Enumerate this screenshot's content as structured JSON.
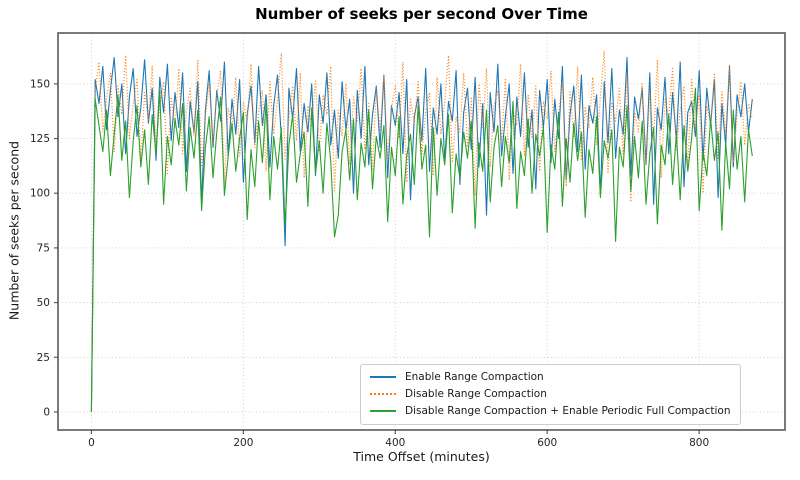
{
  "figure": {
    "title": "Number of seeks per second Over Time",
    "xlabel": "Time Offset (minutes)",
    "ylabel": "Number of seeks per second"
  },
  "colors": {
    "spine": "#595959",
    "grid": "#c9c9c9",
    "tick_text": "#262626",
    "legend_border": "#cccccc",
    "series_blue": "#1f77b4",
    "series_orange": "#ff7f0e",
    "series_green": "#2ca02c"
  },
  "chart_data": {
    "type": "line",
    "title": "Number of seeks per second Over Time",
    "xlabel": "Time Offset (minutes)",
    "ylabel": "Number of seeks per second",
    "grid": true,
    "grid_style": "dotted",
    "legend_position": "lower center",
    "x_start": 0,
    "x_step": 5,
    "x_end": 870,
    "x_ticks": [
      0,
      200,
      400,
      600,
      800
    ],
    "y_ticks": [
      0,
      25,
      50,
      75,
      100,
      125,
      150
    ],
    "xlim": [
      -44,
      913
    ],
    "ylim": [
      -8.25,
      173.25
    ],
    "series": [
      {
        "name": "Enable Range Compaction",
        "color": "#1f77b4",
        "linestyle": "solid",
        "values": [
          0,
          152,
          141,
          158,
          129,
          147,
          162,
          135,
          150,
          118,
          144,
          157,
          126,
          139,
          161,
          132,
          148,
          115,
          153,
          137,
          159,
          124,
          146,
          130,
          155,
          110,
          142,
          128,
          151,
          96,
          138,
          156,
          121,
          147,
          133,
          160,
          117,
          143,
          127,
          152,
          105,
          136,
          149,
          123,
          158,
          131,
          145,
          112,
          140,
          154,
          126,
          76,
          148,
          134,
          157,
          119,
          141,
          128,
          150,
          108,
          145,
          132,
          155,
          122,
          138,
          116,
          151,
          129,
          143,
          100,
          147,
          125,
          158,
          113,
          136,
          149,
          121,
          154,
          107,
          140,
          131,
          146,
          118,
          152,
          97,
          135,
          144,
          124,
          157,
          110,
          139,
          127,
          150,
          115,
          142,
          133,
          156,
          104,
          137,
          148,
          120,
          153,
          112,
          141,
          90,
          146,
          128,
          159,
          117,
          135,
          150,
          109,
          144,
          126,
          155,
          121,
          138,
          102,
          147,
          130,
          152,
          114,
          143,
          125,
          158,
          106,
          136,
          149,
          119,
          154,
          111,
          140,
          132,
          145,
          99,
          151,
          123,
          157,
          116,
          138,
          127,
          162,
          108,
          144,
          134,
          148,
          113,
          155,
          95,
          139,
          129,
          153,
          118,
          146,
          124,
          160,
          103,
          137,
          142,
          126,
          156,
          115,
          148,
          131,
          152,
          98,
          141,
          122,
          158,
          112,
          145,
          135,
          150,
          128,
          143
        ]
      },
      {
        "name": "Disable Range Compaction",
        "color": "#ff7f0e",
        "linestyle": "dotted",
        "values": [
          0,
          147,
          160,
          128,
          143,
          155,
          119,
          149,
          136,
          163,
          125,
          141,
          152,
          114,
          146,
          133,
          158,
          122,
          140,
          151,
          109,
          144,
          130,
          157,
          118,
          138,
          148,
          126,
          161,
          112,
          135,
          150,
          123,
          145,
          156,
          104,
          139,
          129,
          153,
          117,
          142,
          132,
          159,
          121,
          137,
          147,
          110,
          151,
          127,
          143,
          164,
          115,
          134,
          149,
          124,
          155,
          107,
          140,
          131,
          152,
          119,
          145,
          136,
          158,
          101,
          138,
          126,
          150,
          113,
          144,
          133,
          157,
          120,
          141,
          111,
          148,
          129,
          154,
          116,
          139,
          149,
          125,
          160,
          105,
          143,
          132,
          151,
          118,
          137,
          146,
          108,
          153,
          127,
          142,
          163,
          114,
          135,
          128,
          155,
          121,
          144,
          99,
          150,
          130,
          157,
          112,
          140,
          147,
          123,
          152,
          106,
          138,
          131,
          159,
          117,
          145,
          125,
          149,
          110,
          142,
          134,
          156,
          119,
          136,
          151,
          103,
          147,
          126,
          158,
          115,
          139,
          130,
          153,
          122,
          144,
          165,
          109,
          141,
          133,
          148,
          118,
          154,
          96,
          137,
          128,
          150,
          113,
          146,
          124,
          161,
          107,
          143,
          135,
          157,
          120,
          138,
          149,
          111,
          152,
          129,
          145,
          100,
          140,
          132,
          155,
          116,
          147,
          127,
          159,
          114,
          136,
          151,
          122,
          141,
          134
        ]
      },
      {
        "name": "Disable Range Compaction + Enable Periodic Full Compaction",
        "color": "#2ca02c",
        "linestyle": "solid",
        "values": [
          0,
          143,
          131,
          119,
          138,
          108,
          127,
          145,
          115,
          133,
          98,
          124,
          140,
          112,
          129,
          104,
          136,
          118,
          147,
          95,
          126,
          113,
          134,
          122,
          141,
          101,
          130,
          116,
          138,
          92,
          121,
          135,
          107,
          128,
          144,
          99,
          117,
          132,
          110,
          125,
          137,
          88,
          120,
          103,
          133,
          114,
          141,
          97,
          126,
          111,
          130,
          85,
          122,
          136,
          105,
          118,
          128,
          94,
          139,
          109,
          124,
          100,
          132,
          115,
          80,
          90,
          119,
          129,
          106,
          134,
          97,
          123,
          112,
          138,
          102,
          126,
          116,
          131,
          87,
          121,
          108,
          135,
          95,
          117,
          127,
          104,
          140,
          111,
          122,
          80,
          130,
          99,
          125,
          113,
          136,
          91,
          118,
          107,
          128,
          116,
          133,
          84,
          123,
          110,
          138,
          96,
          121,
          131,
          103,
          126,
          114,
          142,
          93,
          119,
          108,
          134,
          100,
          127,
          117,
          130,
          82,
          122,
          111,
          137,
          94,
          125,
          105,
          132,
          115,
          128,
          89,
          120,
          109,
          135,
          98,
          124,
          116,
          129,
          78,
          121,
          112,
          140,
          101,
          126,
          107,
          133,
          95,
          118,
          130,
          86,
          122,
          113,
          136,
          104,
          127,
          97,
          131,
          110,
          125,
          148,
          92,
          119,
          108,
          134,
          115,
          128,
          83,
          123,
          102,
          138,
          111,
          126,
          96,
          129,
          117
        ]
      }
    ]
  }
}
